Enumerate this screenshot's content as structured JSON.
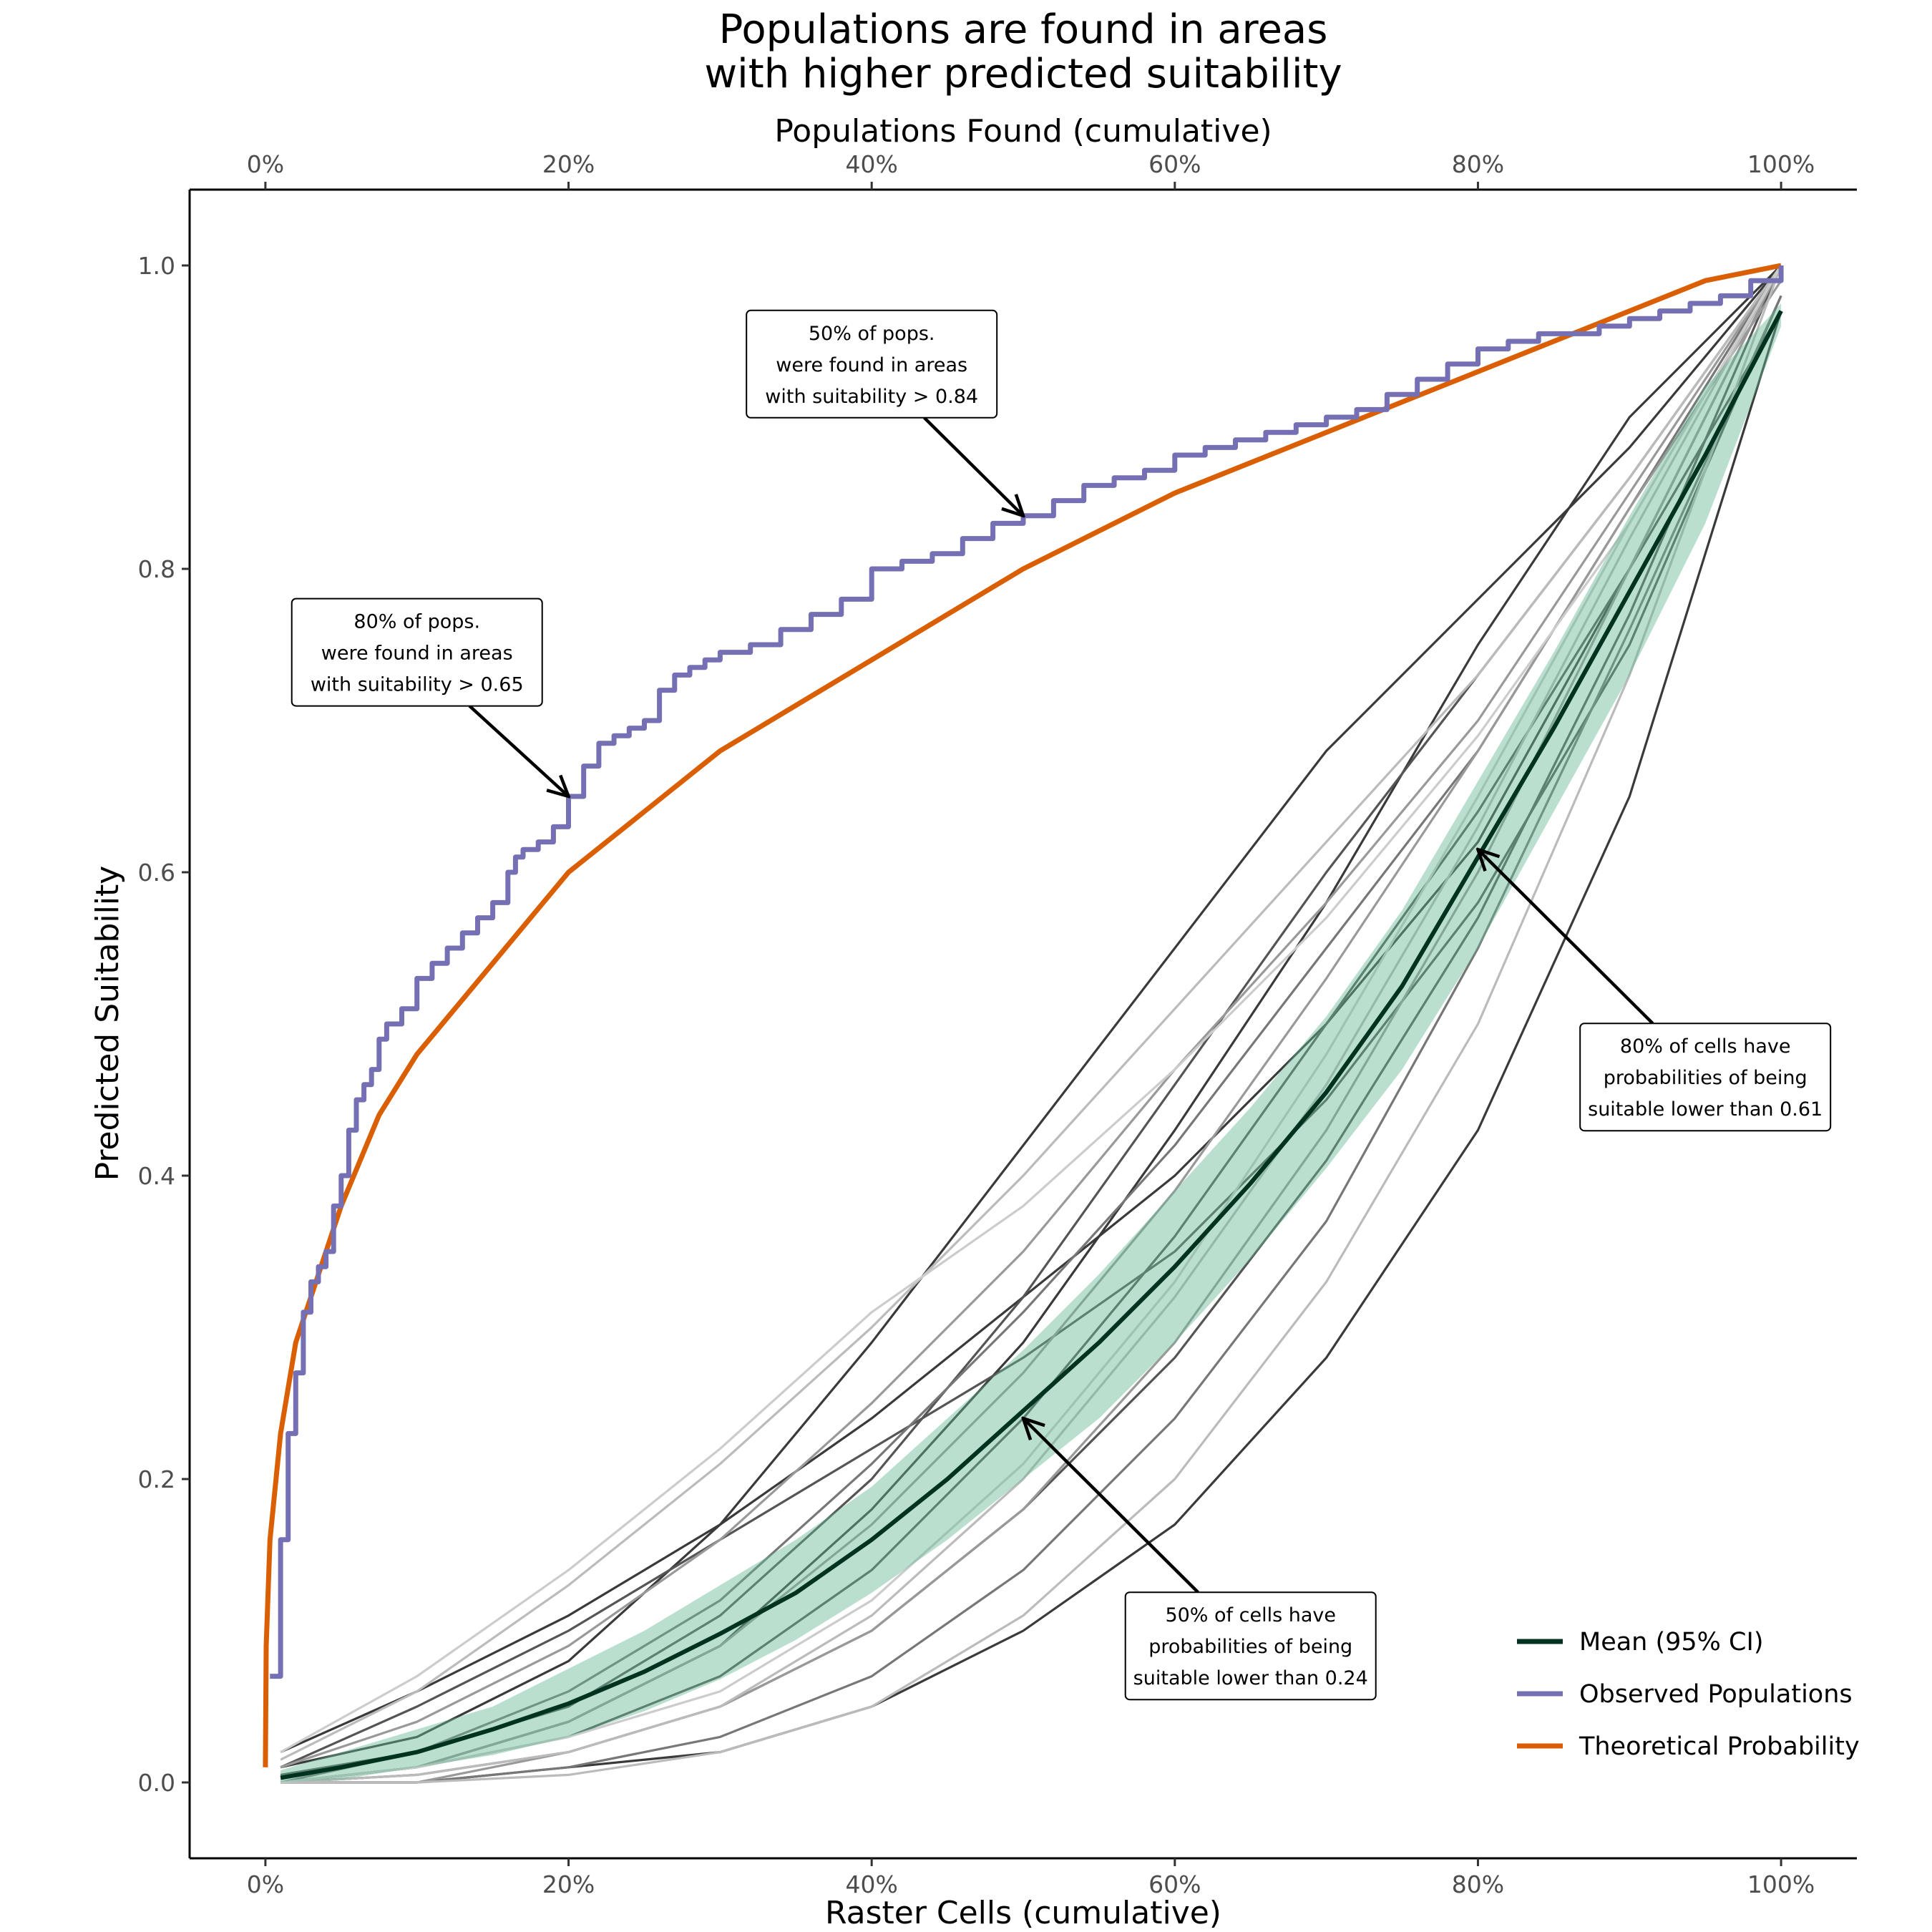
{
  "chart_data": {
    "type": "line",
    "title": [
      "Populations are found in areas",
      "with higher predicted suitability"
    ],
    "xlabel": "Raster Cells (cumulative)",
    "x2label": "Populations Found (cumulative)",
    "ylabel": "Predicted Suitability",
    "xlim": [
      -5,
      105
    ],
    "ylim": [
      -0.05,
      1.05
    ],
    "x_ticks": [
      0,
      20,
      40,
      60,
      80,
      100
    ],
    "x_tick_labels": [
      "0%",
      "20%",
      "40%",
      "60%",
      "80%",
      "100%"
    ],
    "y_ticks": [
      0,
      0.2,
      0.4,
      0.6,
      0.8,
      1.0
    ],
    "y_tick_labels": [
      "0.0",
      "0.2",
      "0.4",
      "0.6",
      "0.8",
      "1.0"
    ],
    "grid": false,
    "legend_position": "bottom-right",
    "series": [
      {
        "name": "Observed Populations",
        "color": "#7570b3",
        "x": [
          0.3,
          1,
          1.5,
          2,
          2.5,
          3,
          3.5,
          4,
          4.5,
          5,
          5.5,
          6,
          6.5,
          7,
          7.5,
          8,
          9,
          10,
          11,
          12,
          13,
          14,
          15,
          16,
          16.5,
          17,
          18,
          19,
          20,
          21,
          22,
          23,
          24,
          25,
          26,
          27,
          28,
          29,
          30,
          32,
          34,
          36,
          38,
          40,
          42,
          44,
          46,
          48,
          50,
          52,
          54,
          56,
          58,
          60,
          62,
          64,
          66,
          68,
          70,
          72,
          74,
          76,
          78,
          80,
          82,
          84,
          86,
          88,
          90,
          92,
          94,
          96,
          98,
          100
        ],
        "values": [
          0.07,
          0.16,
          0.23,
          0.27,
          0.31,
          0.33,
          0.34,
          0.35,
          0.38,
          0.4,
          0.43,
          0.45,
          0.46,
          0.47,
          0.49,
          0.5,
          0.51,
          0.53,
          0.54,
          0.55,
          0.56,
          0.57,
          0.58,
          0.6,
          0.61,
          0.615,
          0.62,
          0.63,
          0.65,
          0.67,
          0.685,
          0.69,
          0.695,
          0.7,
          0.72,
          0.73,
          0.735,
          0.74,
          0.745,
          0.75,
          0.76,
          0.77,
          0.78,
          0.8,
          0.805,
          0.81,
          0.82,
          0.83,
          0.835,
          0.845,
          0.855,
          0.86,
          0.865,
          0.875,
          0.88,
          0.885,
          0.89,
          0.895,
          0.9,
          0.905,
          0.915,
          0.925,
          0.935,
          0.945,
          0.95,
          0.955,
          0.955,
          0.96,
          0.965,
          0.97,
          0.975,
          0.98,
          0.99,
          1.0
        ]
      },
      {
        "name": "Theoretical Probability",
        "color": "#d95f02",
        "curve": "y = (x/100)^0.32",
        "x": [
          0,
          0.05,
          0.3,
          1,
          2,
          3,
          5,
          7.5,
          10,
          15,
          20,
          25,
          30,
          40,
          50,
          60,
          70,
          80,
          90,
          95,
          100
        ],
        "values": [
          0.01,
          0.09,
          0.16,
          0.23,
          0.29,
          0.32,
          0.38,
          0.44,
          0.48,
          0.54,
          0.6,
          0.64,
          0.68,
          0.74,
          0.8,
          0.85,
          0.89,
          0.93,
          0.97,
          0.99,
          1.0
        ]
      },
      {
        "name": "Mean (95% CI)",
        "color": "#00331f",
        "ci_color": "#66b894",
        "x": [
          1,
          5,
          10,
          15,
          20,
          25,
          30,
          35,
          40,
          45,
          50,
          55,
          60,
          65,
          70,
          75,
          80,
          85,
          90,
          95,
          100
        ],
        "values": [
          0.003,
          0.01,
          0.02,
          0.035,
          0.052,
          0.073,
          0.098,
          0.125,
          0.16,
          0.2,
          0.245,
          0.29,
          0.34,
          0.395,
          0.455,
          0.525,
          0.61,
          0.695,
          0.785,
          0.875,
          0.97
        ],
        "ci_low": [
          0.0,
          0.002,
          0.01,
          0.018,
          0.03,
          0.047,
          0.068,
          0.094,
          0.125,
          0.16,
          0.2,
          0.24,
          0.29,
          0.345,
          0.405,
          0.47,
          0.55,
          0.64,
          0.73,
          0.83,
          0.96
        ],
        "ci_high": [
          0.008,
          0.02,
          0.035,
          0.05,
          0.075,
          0.1,
          0.13,
          0.16,
          0.195,
          0.24,
          0.285,
          0.335,
          0.39,
          0.445,
          0.505,
          0.575,
          0.66,
          0.745,
          0.835,
          0.92,
          0.975
        ]
      }
    ],
    "replicates": {
      "description": "individual replicate curves (unlabelled, grey)",
      "x": [
        1,
        10,
        20,
        30,
        40,
        50,
        60,
        70,
        80,
        90,
        100
      ],
      "curves": [
        {
          "color": "#3a3a3a",
          "values": [
            0.01,
            0.03,
            0.08,
            0.17,
            0.29,
            0.42,
            0.55,
            0.68,
            0.78,
            0.88,
            1.0
          ]
        },
        {
          "color": "#3a3a3a",
          "values": [
            0.0,
            0.01,
            0.04,
            0.09,
            0.18,
            0.29,
            0.43,
            0.58,
            0.75,
            0.9,
            1.0
          ]
        },
        {
          "color": "#3a3a3a",
          "values": [
            0.0,
            0.0,
            0.01,
            0.02,
            0.05,
            0.1,
            0.17,
            0.28,
            0.43,
            0.65,
            0.97
          ]
        },
        {
          "color": "#3a3a3a",
          "values": [
            0.02,
            0.06,
            0.11,
            0.17,
            0.24,
            0.32,
            0.4,
            0.5,
            0.62,
            0.8,
            1.0
          ]
        },
        {
          "color": "#555555",
          "values": [
            0.005,
            0.02,
            0.05,
            0.11,
            0.2,
            0.32,
            0.46,
            0.6,
            0.73,
            0.86,
            1.0
          ]
        },
        {
          "color": "#555555",
          "values": [
            0.0,
            0.005,
            0.02,
            0.05,
            0.1,
            0.18,
            0.28,
            0.41,
            0.57,
            0.77,
            1.0
          ]
        },
        {
          "color": "#555555",
          "values": [
            0.01,
            0.05,
            0.1,
            0.16,
            0.22,
            0.28,
            0.35,
            0.45,
            0.58,
            0.75,
            0.98
          ]
        },
        {
          "color": "#555555",
          "values": [
            0.0,
            0.01,
            0.03,
            0.07,
            0.14,
            0.24,
            0.36,
            0.5,
            0.64,
            0.8,
            0.97
          ]
        },
        {
          "color": "#777777",
          "values": [
            0.0,
            0.02,
            0.06,
            0.12,
            0.21,
            0.31,
            0.42,
            0.55,
            0.68,
            0.84,
            1.0
          ]
        },
        {
          "color": "#777777",
          "values": [
            0.0,
            0.0,
            0.01,
            0.03,
            0.07,
            0.14,
            0.24,
            0.37,
            0.55,
            0.76,
            0.98
          ]
        },
        {
          "color": "#999999",
          "values": [
            0.01,
            0.04,
            0.09,
            0.16,
            0.25,
            0.35,
            0.47,
            0.58,
            0.7,
            0.85,
            1.0
          ]
        },
        {
          "color": "#999999",
          "values": [
            0.0,
            0.01,
            0.04,
            0.09,
            0.17,
            0.27,
            0.39,
            0.53,
            0.68,
            0.84,
            0.99
          ]
        },
        {
          "color": "#999999",
          "values": [
            0.0,
            0.0,
            0.02,
            0.05,
            0.1,
            0.18,
            0.29,
            0.43,
            0.6,
            0.8,
            1.0
          ]
        },
        {
          "color": "#bbbbbb",
          "values": [
            0.015,
            0.06,
            0.13,
            0.21,
            0.3,
            0.4,
            0.51,
            0.62,
            0.73,
            0.86,
            1.0
          ]
        },
        {
          "color": "#bbbbbb",
          "values": [
            0.0,
            0.0,
            0.005,
            0.02,
            0.05,
            0.11,
            0.2,
            0.33,
            0.5,
            0.73,
            1.0
          ]
        },
        {
          "color": "#bbbbbb",
          "values": [
            0.0,
            0.005,
            0.02,
            0.05,
            0.11,
            0.2,
            0.32,
            0.46,
            0.63,
            0.82,
            1.0
          ]
        },
        {
          "color": "#cccccc",
          "values": [
            0.02,
            0.07,
            0.14,
            0.22,
            0.31,
            0.38,
            0.47,
            0.57,
            0.69,
            0.83,
            1.0
          ]
        },
        {
          "color": "#cccccc",
          "values": [
            0.0,
            0.01,
            0.03,
            0.06,
            0.12,
            0.21,
            0.33,
            0.48,
            0.65,
            0.83,
            1.0
          ]
        }
      ]
    },
    "annotations": [
      {
        "id": "ann-50-pops",
        "lines": [
          "50% of pops.",
          "were found in areas",
          "with suitability > 0.84"
        ],
        "box_x": 40,
        "box_y": 0.935,
        "arrow_to": [
          50,
          0.835
        ]
      },
      {
        "id": "ann-80-pops",
        "lines": [
          "80% of pops.",
          "were found in areas",
          "with suitability > 0.65"
        ],
        "box_x": 10,
        "box_y": 0.745,
        "arrow_to": [
          20,
          0.65
        ]
      },
      {
        "id": "ann-80-cells",
        "lines": [
          "80% of cells have",
          "probabilities of being",
          "suitable lower than 0.61"
        ],
        "box_x": 95,
        "box_y": 0.465,
        "arrow_to": [
          80,
          0.615
        ]
      },
      {
        "id": "ann-50-cells",
        "lines": [
          "50% of cells have",
          "probabilities of being",
          "suitable lower than 0.24"
        ],
        "box_x": 65,
        "box_y": 0.09,
        "arrow_to": [
          50,
          0.24
        ]
      }
    ],
    "legend": [
      {
        "label": "Mean (95% CI)",
        "color": "#00331f"
      },
      {
        "label": "Observed Populations",
        "color": "#7570b3"
      },
      {
        "label": "Theoretical Probability",
        "color": "#d95f02"
      }
    ]
  }
}
